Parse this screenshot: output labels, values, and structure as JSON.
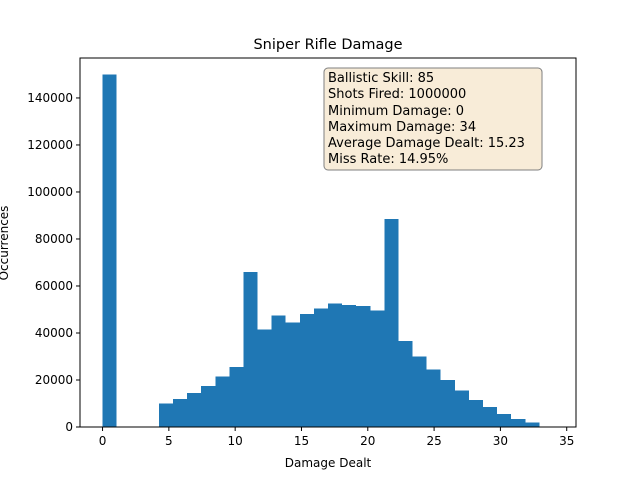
{
  "chart_data": {
    "type": "bar",
    "title": "Sniper Rifle Damage",
    "xlabel": "Damage Dealt",
    "ylabel": "Occurrences",
    "xlim": [
      -1.7,
      35.7
    ],
    "ylim": [
      0,
      157000
    ],
    "xticks": [
      0,
      5,
      10,
      15,
      20,
      25,
      30,
      35
    ],
    "yticks": [
      0,
      20000,
      40000,
      60000,
      80000,
      100000,
      120000,
      140000
    ],
    "bar_color": "#1f77b4",
    "grid": false,
    "bins": [
      {
        "x0": 0,
        "x1": 1.0625,
        "value": 150000
      },
      {
        "x0": 4.25,
        "x1": 5.3125,
        "value": 10000
      },
      {
        "x0": 5.3125,
        "x1": 6.375,
        "value": 12000
      },
      {
        "x0": 6.375,
        "x1": 7.4375,
        "value": 14500
      },
      {
        "x0": 7.4375,
        "x1": 8.5,
        "value": 17500
      },
      {
        "x0": 8.5,
        "x1": 9.5625,
        "value": 21500
      },
      {
        "x0": 9.5625,
        "x1": 10.625,
        "value": 25500
      },
      {
        "x0": 10.625,
        "x1": 11.6875,
        "value": 66000
      },
      {
        "x0": 11.6875,
        "x1": 12.75,
        "value": 41500
      },
      {
        "x0": 12.75,
        "x1": 13.8125,
        "value": 47500
      },
      {
        "x0": 13.8125,
        "x1": 14.875,
        "value": 44500
      },
      {
        "x0": 14.875,
        "x1": 15.9375,
        "value": 48000
      },
      {
        "x0": 15.9375,
        "x1": 17.0,
        "value": 50500
      },
      {
        "x0": 17.0,
        "x1": 18.0625,
        "value": 52500
      },
      {
        "x0": 18.0625,
        "x1": 19.125,
        "value": 52000
      },
      {
        "x0": 19.125,
        "x1": 20.1875,
        "value": 51500
      },
      {
        "x0": 20.1875,
        "x1": 21.25,
        "value": 49500
      },
      {
        "x0": 21.25,
        "x1": 22.3125,
        "value": 88500
      },
      {
        "x0": 22.3125,
        "x1": 23.375,
        "value": 36500
      },
      {
        "x0": 23.375,
        "x1": 24.4375,
        "value": 30000
      },
      {
        "x0": 24.4375,
        "x1": 25.5,
        "value": 24500
      },
      {
        "x0": 25.5,
        "x1": 26.5625,
        "value": 20000
      },
      {
        "x0": 26.5625,
        "x1": 27.625,
        "value": 15500
      },
      {
        "x0": 27.625,
        "x1": 28.6875,
        "value": 11500
      },
      {
        "x0": 28.6875,
        "x1": 29.75,
        "value": 8500
      },
      {
        "x0": 29.75,
        "x1": 30.8125,
        "value": 5500
      },
      {
        "x0": 30.8125,
        "x1": 31.875,
        "value": 3500
      },
      {
        "x0": 31.875,
        "x1": 32.9375,
        "value": 2000
      }
    ],
    "info_box": {
      "placement": "top-right",
      "background": "#f8ecd8",
      "border": "#7f7f7f",
      "lines": [
        "Ballistic Skill: 85",
        "Shots Fired: 1000000",
        "Minimum Damage: 0",
        "Maximum Damage: 34",
        "Average Damage Dealt: 15.23",
        "Miss Rate: 14.95%"
      ]
    }
  }
}
